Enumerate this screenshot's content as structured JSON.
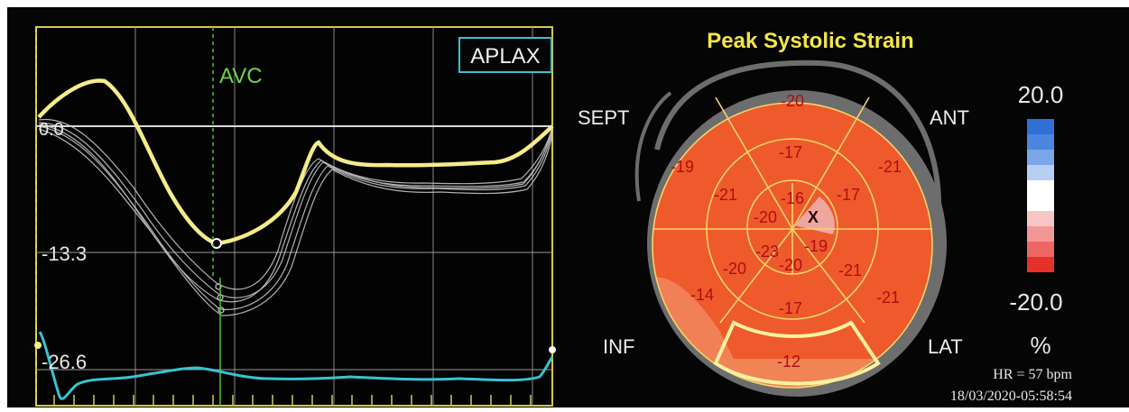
{
  "strain_panel": {
    "view_label": "APLAX",
    "marker_label": "AVC",
    "y_tick_labels": [
      "0.0",
      "-13.3",
      "-26.6"
    ]
  },
  "bullseye_panel": {
    "title": "Peak Systolic Strain",
    "wall_labels": {
      "sept": "SEPT",
      "ant": "ANT",
      "inf": "INF",
      "lat": "LAT"
    },
    "segments": {
      "basal_sept": "-20",
      "basal_ant_sept": "-19",
      "basal_ant": "-21",
      "basal_inf_sept": "-14",
      "basal_lat": "-21",
      "basal_inf": "-12",
      "mid_upper": "-17",
      "mid_upper_left": "-21",
      "mid_upper_right": "-17",
      "mid_lower_left": "-20",
      "mid_lower_right": "-21",
      "mid_lower": "-17",
      "apex_top": "-16",
      "apex_left": "-20",
      "apex_right": "X",
      "apex_lower_left": "-23",
      "apex_lower_right": "-19",
      "apex_bottom": "-20"
    },
    "scale": {
      "max_label": "20.0",
      "min_label": "-20.0",
      "unit": "%"
    },
    "heart_rate": "HR = 57 bpm",
    "timestamp": "18/03/2020-05:58:54"
  },
  "colors": {
    "curve_average": "#f4ec8a",
    "curve_segments": "#cfcfcf",
    "avc_marker": "#52c234",
    "ecg": "#38c3cf",
    "frame": "#d6c94a",
    "segment_fill": "#ee5a2c",
    "scale_positive": "#2f6fd6",
    "scale_negative": "#e8302a"
  }
}
